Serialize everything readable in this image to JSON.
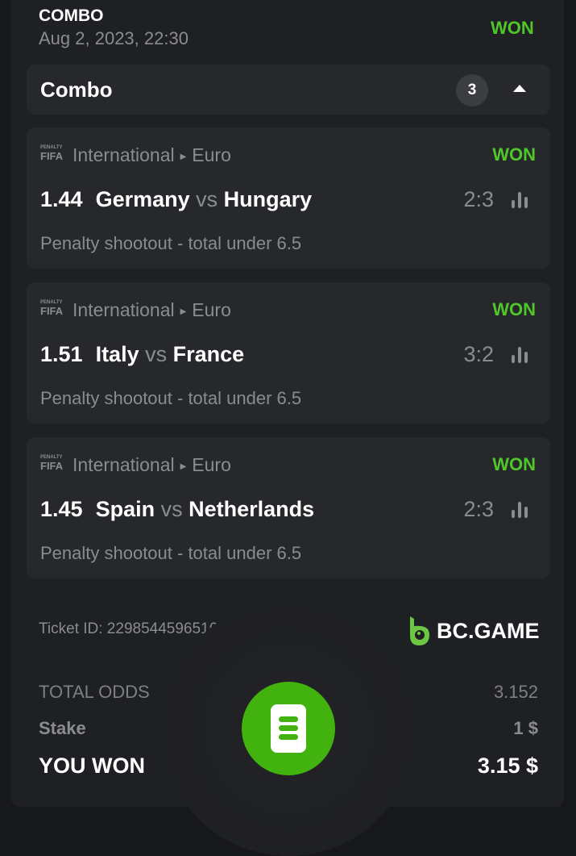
{
  "header": {
    "bet_type": "COMBO",
    "date": "Aug 2, 2023, 22:30",
    "status": "WON"
  },
  "combo": {
    "label": "Combo",
    "count": "3"
  },
  "selections": [
    {
      "brand_logo": "PENALTY FIFA 24",
      "category": "International",
      "league": "Euro",
      "status": "WON",
      "odds": "1.44",
      "home": "Germany",
      "vs": "vs",
      "away": "Hungary",
      "score": "2:3",
      "market": "Penalty shootout - total under 6.5"
    },
    {
      "brand_logo": "PENALTY FIFA 24",
      "category": "International",
      "league": "Euro",
      "status": "WON",
      "odds": "1.51",
      "home": "Italy",
      "vs": "vs",
      "away": "France",
      "score": "3:2",
      "market": "Penalty shootout - total under 6.5"
    },
    {
      "brand_logo": "PENALTY FIFA 24",
      "category": "International",
      "league": "Euro",
      "status": "WON",
      "odds": "1.45",
      "home": "Spain",
      "vs": "vs",
      "away": "Netherlands",
      "score": "2:3",
      "market": "Penalty shootout - total under 6.5"
    }
  ],
  "ticket": {
    "label": "Ticket ID: 2298544596516483128",
    "brand": "BC.GAME"
  },
  "summary": {
    "total_odds_label": "TOTAL ODDS",
    "total_odds": "3.152",
    "stake_label": "Stake",
    "stake": "1 $",
    "won_label": "YOU WON",
    "won": "3.15 $"
  },
  "colors": {
    "accent": "#4fc72b",
    "button": "#42b30e"
  }
}
